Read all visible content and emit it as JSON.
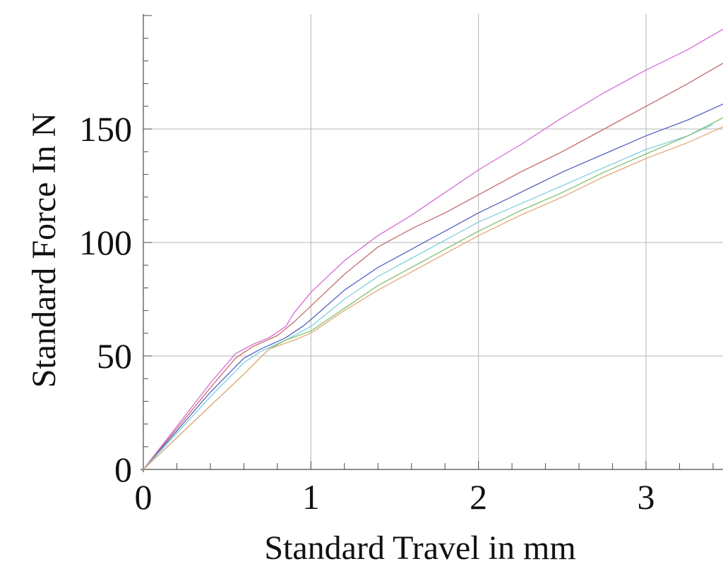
{
  "chart_data": {
    "type": "line",
    "title": "",
    "xlabel": "Standard Travel in mm",
    "ylabel": "Standard Force In N",
    "xlim": [
      0,
      3.46
    ],
    "ylim": [
      0,
      200
    ],
    "x_ticks": [
      0,
      1,
      2,
      3
    ],
    "x_tick_labels": [
      "0",
      "1",
      "2",
      "3"
    ],
    "y_ticks": [
      0,
      50,
      100,
      150
    ],
    "y_tick_labels": [
      "0",
      "50",
      "100",
      "150"
    ],
    "x_minor_step": 0.2,
    "y_minor_step": 10,
    "grid": true,
    "legend": "none",
    "series": [
      {
        "color": "#d66bd6",
        "points": [
          [
            0,
            0
          ],
          [
            0.2,
            19
          ],
          [
            0.4,
            38
          ],
          [
            0.55,
            51
          ],
          [
            0.65,
            55
          ],
          [
            0.75,
            58
          ],
          [
            0.85,
            63
          ],
          [
            0.9,
            69
          ],
          [
            1.0,
            78
          ],
          [
            1.2,
            92
          ],
          [
            1.4,
            103
          ],
          [
            1.6,
            112
          ],
          [
            1.8,
            122
          ],
          [
            2.0,
            132
          ],
          [
            2.25,
            143
          ],
          [
            2.5,
            155
          ],
          [
            2.75,
            166
          ],
          [
            3.0,
            176
          ],
          [
            3.25,
            185
          ],
          [
            3.46,
            194
          ]
        ]
      },
      {
        "color": "#c86a6a",
        "points": [
          [
            0,
            0
          ],
          [
            0.2,
            18
          ],
          [
            0.4,
            36
          ],
          [
            0.55,
            49
          ],
          [
            0.65,
            54
          ],
          [
            0.8,
            59
          ],
          [
            0.9,
            65
          ],
          [
            1.0,
            72
          ],
          [
            1.2,
            86
          ],
          [
            1.4,
            98
          ],
          [
            1.6,
            106
          ],
          [
            1.8,
            113
          ],
          [
            2.0,
            121
          ],
          [
            2.25,
            131
          ],
          [
            2.5,
            140
          ],
          [
            2.75,
            150
          ],
          [
            3.0,
            160
          ],
          [
            3.25,
            170
          ],
          [
            3.46,
            179
          ]
        ]
      },
      {
        "color": "#5560c0",
        "points": [
          [
            0,
            0
          ],
          [
            0.2,
            17
          ],
          [
            0.4,
            34
          ],
          [
            0.6,
            49
          ],
          [
            0.7,
            53
          ],
          [
            0.85,
            58
          ],
          [
            0.95,
            63
          ],
          [
            1.0,
            66
          ],
          [
            1.2,
            79
          ],
          [
            1.4,
            89
          ],
          [
            1.6,
            97
          ],
          [
            1.8,
            105
          ],
          [
            2.0,
            113
          ],
          [
            2.25,
            122
          ],
          [
            2.5,
            131
          ],
          [
            2.75,
            139
          ],
          [
            3.0,
            147
          ],
          [
            3.25,
            154
          ],
          [
            3.46,
            161
          ]
        ]
      },
      {
        "color": "#7fd0e0",
        "points": [
          [
            0,
            0
          ],
          [
            0.2,
            16
          ],
          [
            0.4,
            32
          ],
          [
            0.6,
            47
          ],
          [
            0.7,
            52
          ],
          [
            0.85,
            57
          ],
          [
            1.0,
            63
          ],
          [
            1.2,
            75
          ],
          [
            1.4,
            85
          ],
          [
            1.6,
            93
          ],
          [
            1.8,
            101
          ],
          [
            2.0,
            109
          ],
          [
            2.25,
            117
          ],
          [
            2.5,
            125
          ],
          [
            2.75,
            133
          ],
          [
            3.0,
            141
          ],
          [
            3.25,
            147
          ],
          [
            3.4,
            152
          ]
        ]
      },
      {
        "color": "#80c070",
        "points": [
          [
            0,
            0
          ],
          [
            0.2,
            14
          ],
          [
            0.4,
            28
          ],
          [
            0.6,
            42
          ],
          [
            0.75,
            53
          ],
          [
            0.85,
            57
          ],
          [
            1.0,
            61
          ],
          [
            1.2,
            71
          ],
          [
            1.4,
            81
          ],
          [
            1.6,
            89
          ],
          [
            1.8,
            97
          ],
          [
            2.0,
            105
          ],
          [
            2.25,
            114
          ],
          [
            2.5,
            122
          ],
          [
            2.75,
            131
          ],
          [
            3.0,
            139
          ],
          [
            3.25,
            147
          ],
          [
            3.46,
            155
          ]
        ]
      },
      {
        "color": "#e3a878",
        "points": [
          [
            0,
            0
          ],
          [
            0.2,
            14
          ],
          [
            0.4,
            28
          ],
          [
            0.6,
            42
          ],
          [
            0.75,
            53
          ],
          [
            0.9,
            57
          ],
          [
            1.0,
            60
          ],
          [
            1.2,
            70
          ],
          [
            1.4,
            79
          ],
          [
            1.6,
            87
          ],
          [
            1.8,
            95
          ],
          [
            2.0,
            103
          ],
          [
            2.25,
            112
          ],
          [
            2.5,
            120
          ],
          [
            2.75,
            129
          ],
          [
            3.0,
            137
          ],
          [
            3.25,
            144
          ],
          [
            3.46,
            151
          ]
        ]
      }
    ]
  }
}
